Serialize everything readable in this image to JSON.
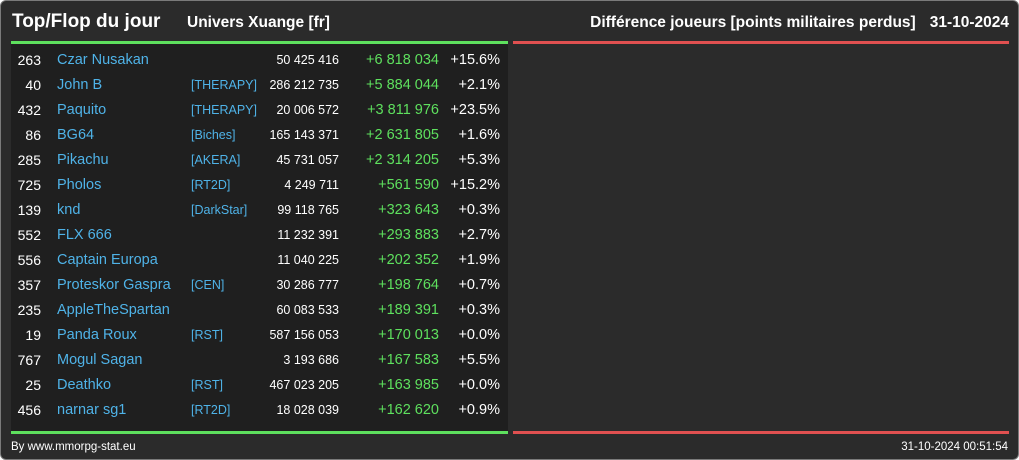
{
  "header": {
    "title": "Top/Flop du jour",
    "universe": "Univers Xuange [fr]",
    "metric": "Différence joueurs [points militaires perdus]",
    "date": "31-10-2024"
  },
  "colors": {
    "background": "#2b2b2b",
    "left_panel": "#1f1f1f",
    "top_accent": "#5ee05e",
    "flop_accent": "#e05050",
    "link": "#4fb3e8",
    "positive": "#5ee05e"
  },
  "top_rows": [
    {
      "rank": "263",
      "name": "Czar Nusakan",
      "alliance": "",
      "points": "50 425 416",
      "diff": "+6 818 034",
      "pct": "+15.6%"
    },
    {
      "rank": "40",
      "name": "John B",
      "alliance": "[THERAPY]",
      "points": "286 212 735",
      "diff": "+5 884 044",
      "pct": "+2.1%"
    },
    {
      "rank": "432",
      "name": "Paquito",
      "alliance": "[THERAPY]",
      "points": "20 006 572",
      "diff": "+3 811 976",
      "pct": "+23.5%"
    },
    {
      "rank": "86",
      "name": "BG64",
      "alliance": "[Biches]",
      "points": "165 143 371",
      "diff": "+2 631 805",
      "pct": "+1.6%"
    },
    {
      "rank": "285",
      "name": "Pikachu",
      "alliance": "[AKERA]",
      "points": "45 731 057",
      "diff": "+2 314 205",
      "pct": "+5.3%"
    },
    {
      "rank": "725",
      "name": "Pholos",
      "alliance": "[RT2D]",
      "points": "4 249 711",
      "diff": "+561 590",
      "pct": "+15.2%"
    },
    {
      "rank": "139",
      "name": "knd",
      "alliance": "[DarkStar]",
      "points": "99 118 765",
      "diff": "+323 643",
      "pct": "+0.3%"
    },
    {
      "rank": "552",
      "name": "FLX 666",
      "alliance": "",
      "points": "11 232 391",
      "diff": "+293 883",
      "pct": "+2.7%"
    },
    {
      "rank": "556",
      "name": "Captain Europa",
      "alliance": "",
      "points": "11 040 225",
      "diff": "+202 352",
      "pct": "+1.9%"
    },
    {
      "rank": "357",
      "name": "Proteskor Gaspra",
      "alliance": "[CEN]",
      "points": "30 286 777",
      "diff": "+198 764",
      "pct": "+0.7%"
    },
    {
      "rank": "235",
      "name": "AppleTheSpartan",
      "alliance": "",
      "points": "60 083 533",
      "diff": "+189 391",
      "pct": "+0.3%"
    },
    {
      "rank": "19",
      "name": "Panda Roux",
      "alliance": "[RST]",
      "points": "587 156 053",
      "diff": "+170 013",
      "pct": "+0.0%"
    },
    {
      "rank": "767",
      "name": "Mogul Sagan",
      "alliance": "",
      "points": "3 193 686",
      "diff": "+167 583",
      "pct": "+5.5%"
    },
    {
      "rank": "25",
      "name": "Deathko",
      "alliance": "[RST]",
      "points": "467 023 205",
      "diff": "+163 985",
      "pct": "+0.0%"
    },
    {
      "rank": "456",
      "name": "narnar sg1",
      "alliance": "[RT2D]",
      "points": "18 028 039",
      "diff": "+162 620",
      "pct": "+0.9%"
    }
  ],
  "footer": {
    "source": "By www.mmorpg-stat.eu",
    "timestamp": "31-10-2024 00:51:54"
  }
}
